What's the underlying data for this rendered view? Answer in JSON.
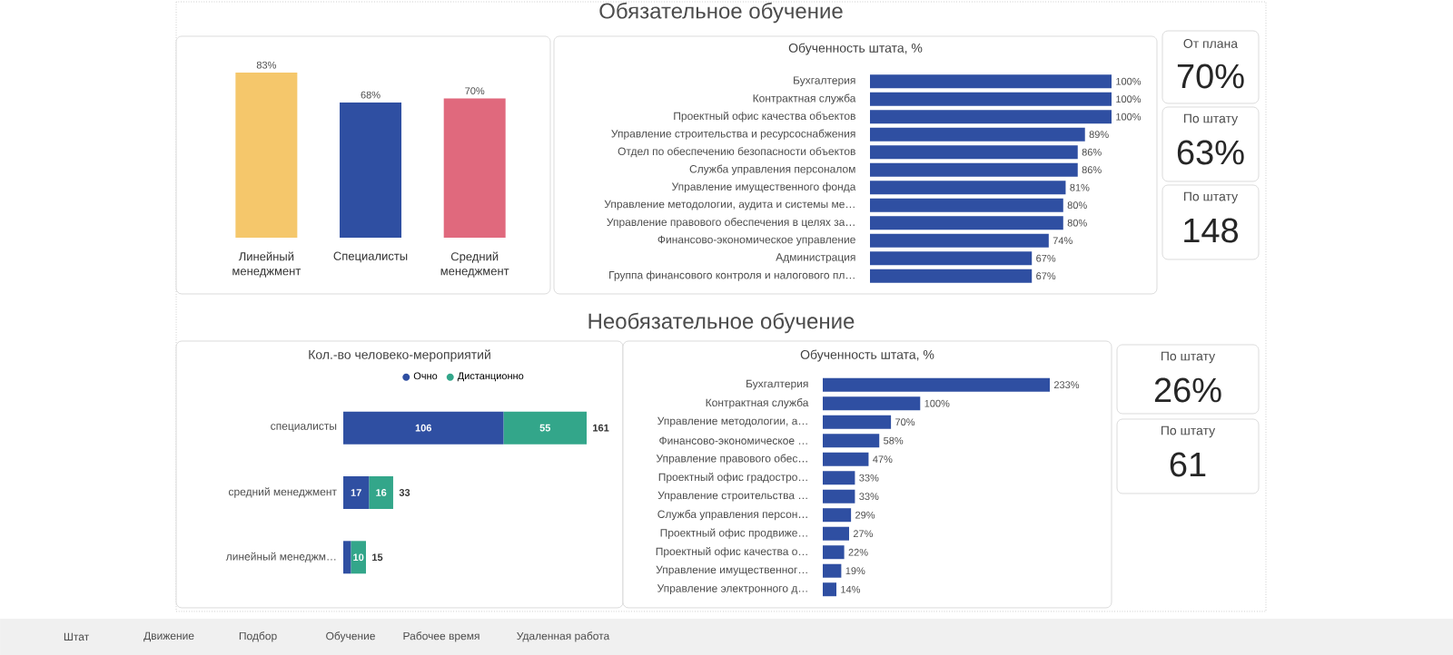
{
  "chart_data": [
    {
      "type": "other",
      "title": "Обязательное обучение"
    },
    {
      "type": "bar",
      "categories": [
        "Линейный менеджмент",
        "Специалисты",
        "Средний менеджмент"
      ],
      "values": [
        83,
        68,
        70
      ],
      "colors": [
        "#f5c76b",
        "#2f4fa2",
        "#e0697d"
      ],
      "value_labels": [
        "83%",
        "68%",
        "70%"
      ]
    },
    {
      "type": "bar",
      "orientation": "horizontal",
      "title": "Обученность штата, %",
      "categories": [
        "Бухгалтерия",
        "Контрактная служба",
        "Проектный офис качества объектов",
        "Управление строительства и ресурсоснабжения",
        "Отдел по обеспечению безопасности объектов",
        "Служба управления персоналом",
        "Управление имущественного фонда",
        "Управление методологии, аудита и системы ме…",
        "Управление правового обеспечения в целях за…",
        "Финансово-экономическое управление",
        "Администрация",
        "Группа финансового контроля и налогового пл…"
      ],
      "values": [
        100,
        100,
        100,
        89,
        86,
        86,
        81,
        80,
        80,
        74,
        67,
        67
      ],
      "color": "#2f4fa2",
      "value_labels": [
        "100%",
        "100%",
        "100%",
        "89%",
        "86%",
        "86%",
        "81%",
        "80%",
        "80%",
        "74%",
        "67%",
        "67%"
      ]
    },
    {
      "type": "other",
      "title": "От плана",
      "annotations": [
        "70%"
      ]
    },
    {
      "type": "other",
      "title": "По штату",
      "annotations": [
        "63%"
      ]
    },
    {
      "type": "other",
      "title": "По штату",
      "annotations": [
        "148"
      ]
    },
    {
      "type": "other",
      "title": "Необязательное обучение"
    },
    {
      "type": "bar",
      "orientation": "horizontal",
      "stacked": true,
      "title": "Кол.-во человеко-мероприятий",
      "legend": "top",
      "categories": [
        "специалисты",
        "средний менеджмент",
        "линейный менеджм…"
      ],
      "series": [
        {
          "name": "Очно",
          "color": "#2f4fa2",
          "values": [
            106,
            17,
            5
          ],
          "value_labels": [
            "106",
            "17",
            null
          ]
        },
        {
          "name": "Дистанционно",
          "color": "#33a68a",
          "values": [
            55,
            16,
            10
          ],
          "value_labels": [
            "55",
            "16",
            "10"
          ]
        }
      ],
      "totals": [
        "161",
        "33",
        "15"
      ]
    },
    {
      "type": "bar",
      "orientation": "horizontal",
      "title": "Обученность штата, %",
      "categories": [
        "Бухгалтерия",
        "Контрактная служба",
        "Управление методологии, а…",
        "Финансово-экономическое …",
        "Управление правового обес…",
        "Проектный офис градостро…",
        "Управление строительства …",
        "Служба управления персон…",
        "Проектный офис продвиже…",
        "Проектный офис качества о…",
        "Управление имущественног…",
        "Управление электронного д…"
      ],
      "values": [
        233,
        100,
        70,
        58,
        47,
        33,
        33,
        29,
        27,
        22,
        19,
        14
      ],
      "color": "#2f4fa2",
      "value_labels": [
        "233%",
        "100%",
        "70%",
        "58%",
        "47%",
        "33%",
        "33%",
        "29%",
        "27%",
        "22%",
        "19%",
        "14%"
      ]
    },
    {
      "type": "other",
      "title": "По штату",
      "annotations": [
        "26%"
      ]
    },
    {
      "type": "other",
      "title": "По штату",
      "annotations": [
        "61"
      ]
    },
    {
      "type": "other",
      "annotations": [
        "Штат",
        "Движение",
        "Подбор",
        "Обучение",
        "Рабочее время",
        "Удаленная работа"
      ]
    }
  ]
}
